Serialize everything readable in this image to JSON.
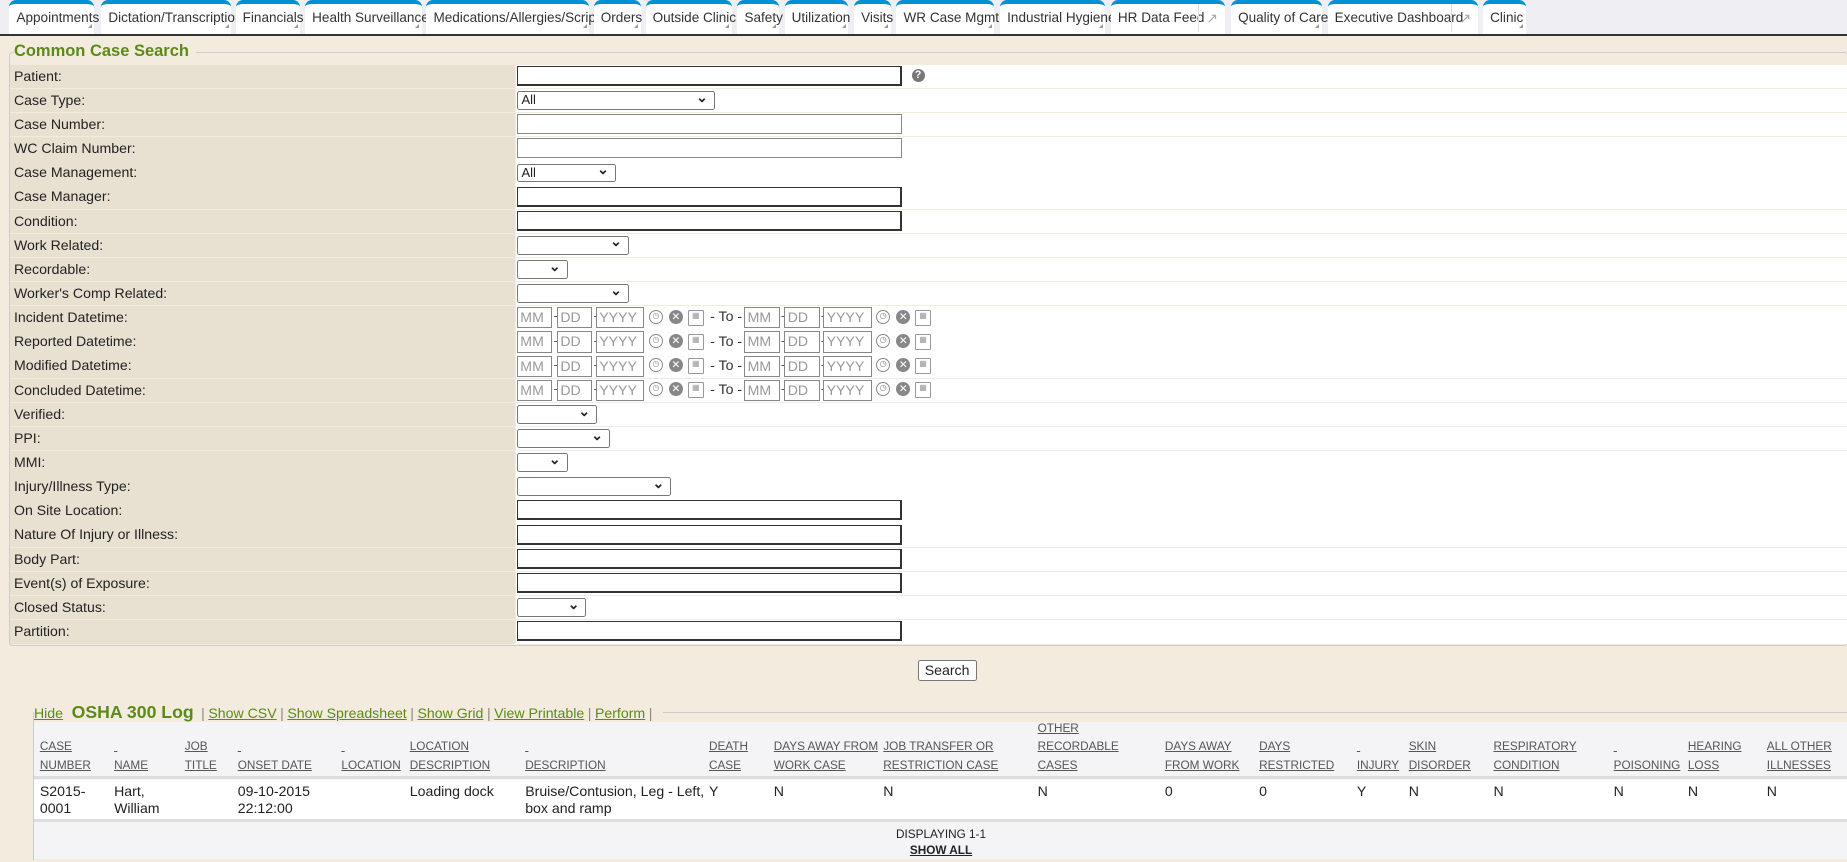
{
  "tabs": [
    {
      "label": "Appointments",
      "ext": false
    },
    {
      "label": "Dictation/Transcription",
      "ext": false
    },
    {
      "label": "Financials",
      "ext": false
    },
    {
      "label": "Health Surveillance",
      "ext": false
    },
    {
      "label": "Medications/Allergies/Scripts",
      "ext": false
    },
    {
      "label": "Orders",
      "ext": false
    },
    {
      "label": "Outside Clinic",
      "ext": false
    },
    {
      "label": "Safety",
      "ext": false
    },
    {
      "label": "Utilization",
      "ext": false
    },
    {
      "label": "Visits",
      "ext": false
    },
    {
      "label": "WR Case Mgmt",
      "ext": false
    },
    {
      "label": "Industrial Hygiene",
      "ext": false
    },
    {
      "label": "HR Data Feed",
      "ext": true
    },
    {
      "label": "Quality of Care",
      "ext": false
    },
    {
      "label": "Executive Dashboard",
      "ext": true
    },
    {
      "label": "Clinic",
      "ext": false
    }
  ],
  "search": {
    "title": "Common Case Search",
    "button": "Search",
    "date_placeholders": {
      "mm": "MM",
      "dd": "DD",
      "yyyy": "YYYY",
      "to": "- To -"
    },
    "fields": [
      {
        "label": "Patient:",
        "type": "text",
        "help": true
      },
      {
        "label": "Case Type:",
        "type": "select",
        "value": "All"
      },
      {
        "label": "Case Number:",
        "type": "thin"
      },
      {
        "label": "WC Claim Number:",
        "type": "thin"
      },
      {
        "label": "Case Management:",
        "type": "select",
        "value": "All"
      },
      {
        "label": "Case Manager:",
        "type": "text"
      },
      {
        "label": "Condition:",
        "type": "text"
      },
      {
        "label": "Work Related:",
        "type": "select",
        "value": ""
      },
      {
        "label": "Recordable:",
        "type": "select",
        "value": ""
      },
      {
        "label": "Worker's Comp Related:",
        "type": "select",
        "value": ""
      },
      {
        "label": "Incident Datetime:",
        "type": "date"
      },
      {
        "label": "Reported Datetime:",
        "type": "date"
      },
      {
        "label": "Modified Datetime:",
        "type": "date"
      },
      {
        "label": "Concluded Datetime:",
        "type": "date"
      },
      {
        "label": "Verified:",
        "type": "select",
        "value": ""
      },
      {
        "label": "PPI:",
        "type": "select",
        "value": ""
      },
      {
        "label": "MMI:",
        "type": "select",
        "value": ""
      },
      {
        "label": "Injury/Illness Type:",
        "type": "select",
        "value": ""
      },
      {
        "label": "On Site Location:",
        "type": "text"
      },
      {
        "label": "Nature Of Injury or Illness:",
        "type": "text"
      },
      {
        "label": "Body Part:",
        "type": "text"
      },
      {
        "label": "Event(s) of Exposure:",
        "type": "text"
      },
      {
        "label": "Closed Status:",
        "type": "select",
        "value": ""
      },
      {
        "label": "Partition:",
        "type": "text"
      }
    ]
  },
  "osha": {
    "hide": "Hide",
    "title": "OSHA 300 Log",
    "links": [
      "Show CSV",
      "Show Spreadsheet",
      "Show Grid",
      "View Printable",
      "Perform"
    ],
    "columns": [
      [
        "CASE",
        "NUMBER"
      ],
      [
        "",
        "NAME"
      ],
      [
        "JOB",
        "TITLE"
      ],
      [
        "",
        "ONSET DATE"
      ],
      [
        "",
        "LOCATION"
      ],
      [
        "LOCATION",
        "DESCRIPTION"
      ],
      [
        "",
        "DESCRIPTION"
      ],
      [
        "DEATH",
        "CASE"
      ],
      [
        "DAYS AWAY FROM",
        "WORK CASE"
      ],
      [
        "JOB TRANSFER OR",
        "RESTRICTION CASE"
      ],
      [
        "OTHER",
        "RECORDABLE",
        "CASES"
      ],
      [
        "DAYS AWAY",
        "FROM WORK"
      ],
      [
        "DAYS",
        "RESTRICTED"
      ],
      [
        "",
        "INJURY"
      ],
      [
        "SKIN",
        "DISORDER"
      ],
      [
        "RESPIRATORY",
        "CONDITION"
      ],
      [
        "",
        "POISONING"
      ],
      [
        "HEARING",
        "LOSS"
      ],
      [
        "ALL OTHER",
        "ILLNESSES"
      ]
    ],
    "rows": [
      [
        [
          "S2015-",
          "0001"
        ],
        [
          "Hart,",
          "William"
        ],
        [
          ""
        ],
        [
          "09-10-2015",
          "22:12:00"
        ],
        [
          ""
        ],
        [
          "Loading dock"
        ],
        [
          "Bruise/Contusion, Leg - Left,",
          "box and ramp"
        ],
        [
          "Y"
        ],
        [
          "N"
        ],
        [
          "N"
        ],
        [
          "N"
        ],
        [
          "0"
        ],
        [
          "0"
        ],
        [
          "Y"
        ],
        [
          "N"
        ],
        [
          "N"
        ],
        [
          "N"
        ],
        [
          "N"
        ],
        [
          "N"
        ]
      ]
    ],
    "displaying": "DISPLAYING 1-1",
    "show_all": "SHOW ALL"
  }
}
